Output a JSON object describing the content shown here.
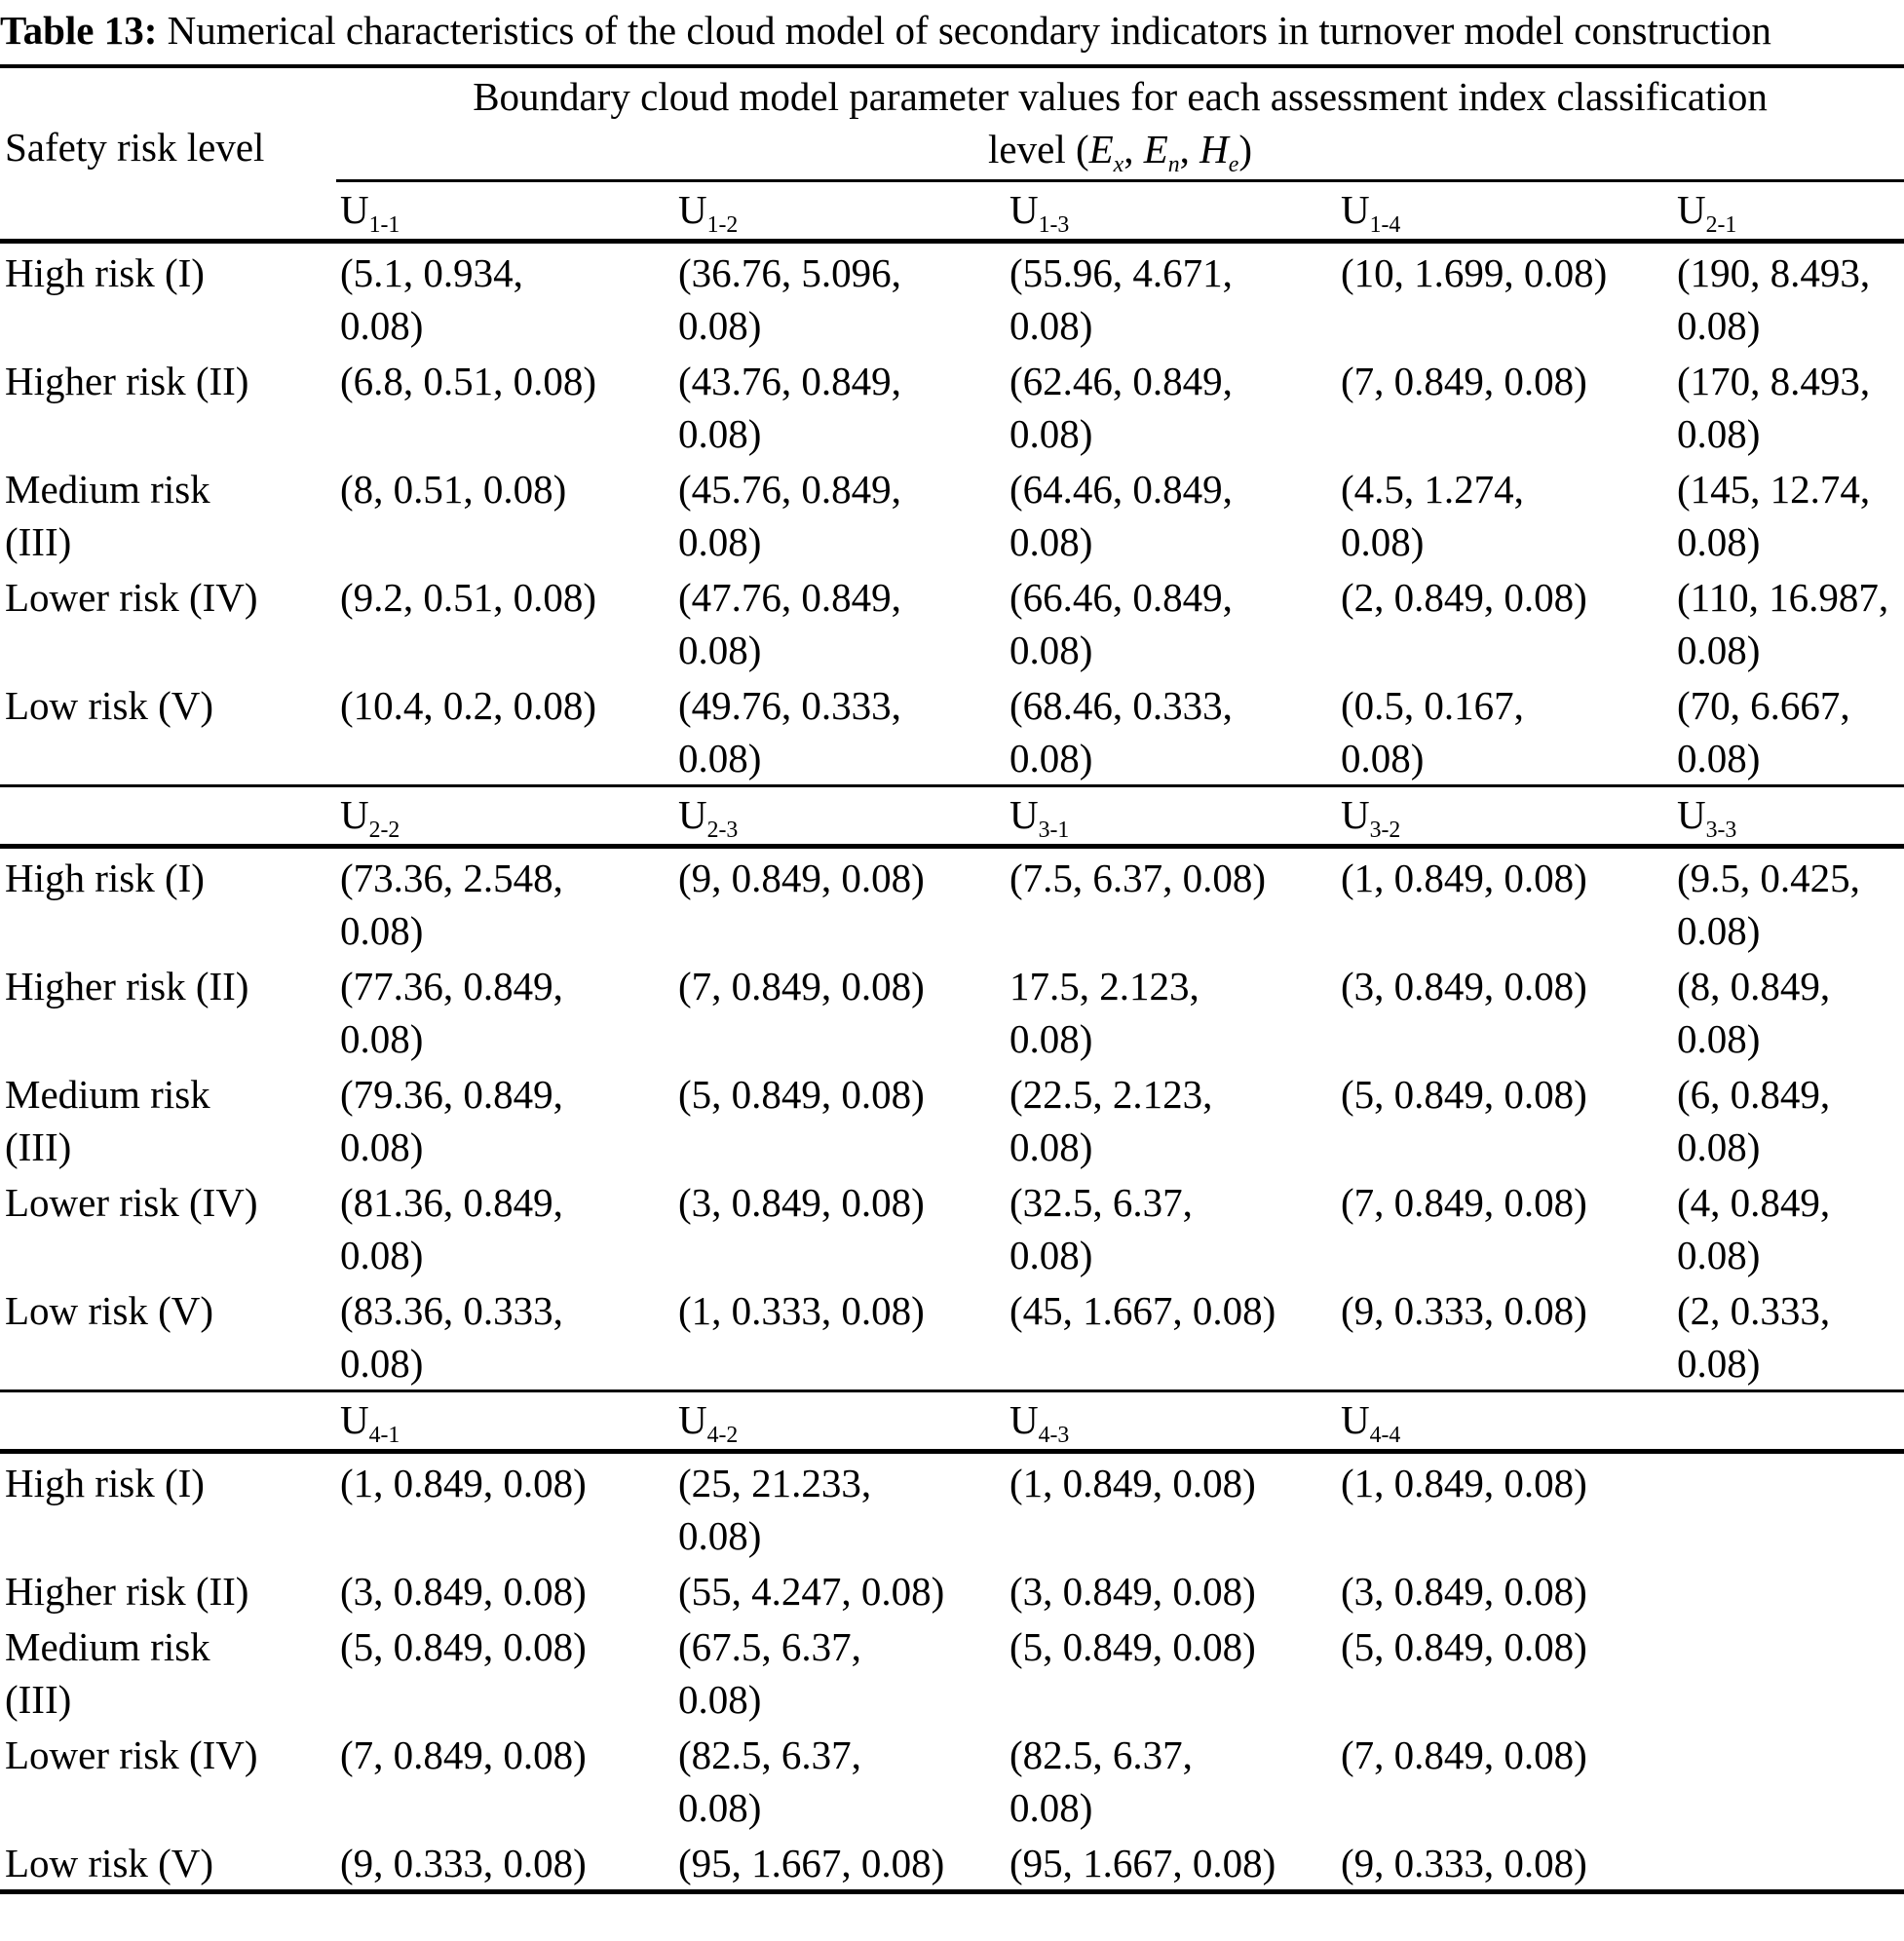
{
  "title": {
    "label": "Table 13:",
    "text": "Numerical characteristics of the cloud model of secondary indicators in turnover model construction"
  },
  "table": {
    "row_dimension_header": "Safety risk level",
    "group_header_line1": "Boundary cloud model parameter values for each assessment index classification",
    "group_header_line2": {
      "prefix": "level (",
      "sym1_base": "E",
      "sym1_sub": "x",
      "sep1": ", ",
      "sym2_base": "E",
      "sym2_sub": "n",
      "sep2": ", ",
      "sym3_base": "H",
      "sym3_sub": "e",
      "suffix": ")"
    },
    "sections": [
      {
        "columns": [
          {
            "base": "U",
            "sub": "1-1"
          },
          {
            "base": "U",
            "sub": "1-2"
          },
          {
            "base": "U",
            "sub": "1-3"
          },
          {
            "base": "U",
            "sub": "1-4"
          },
          {
            "base": "U",
            "sub": "2-1"
          }
        ],
        "rows": [
          {
            "label": [
              "High risk (I)"
            ],
            "cells": [
              [
                "(5.1, 0.934,",
                "0.08)"
              ],
              [
                "(36.76, 5.096,",
                "0.08)"
              ],
              [
                "(55.96, 4.671,",
                "0.08)"
              ],
              [
                "(10, 1.699, 0.08)"
              ],
              [
                "(190, 8.493,",
                "0.08)"
              ]
            ]
          },
          {
            "label": [
              "Higher risk (II)"
            ],
            "cells": [
              [
                "(6.8, 0.51, 0.08)"
              ],
              [
                "(43.76, 0.849,",
                "0.08)"
              ],
              [
                "(62.46, 0.849,",
                "0.08)"
              ],
              [
                "(7, 0.849, 0.08)"
              ],
              [
                "(170, 8.493,",
                "0.08)"
              ]
            ]
          },
          {
            "label": [
              "Medium risk",
              "(III)"
            ],
            "cells": [
              [
                "(8, 0.51, 0.08)"
              ],
              [
                "(45.76, 0.849,",
                "0.08)"
              ],
              [
                "(64.46, 0.849,",
                "0.08)"
              ],
              [
                "(4.5, 1.274,",
                "0.08)"
              ],
              [
                "(145, 12.74,",
                "0.08)"
              ]
            ]
          },
          {
            "label": [
              "Lower risk (IV)"
            ],
            "cells": [
              [
                "(9.2, 0.51, 0.08)"
              ],
              [
                "(47.76, 0.849,",
                "0.08)"
              ],
              [
                "(66.46, 0.849,",
                "0.08)"
              ],
              [
                "(2, 0.849, 0.08)"
              ],
              [
                "(110, 16.987,",
                "0.08)"
              ]
            ]
          },
          {
            "label": [
              "Low risk (V)"
            ],
            "cells": [
              [
                "(10.4, 0.2, 0.08)"
              ],
              [
                "(49.76, 0.333,",
                "0.08)"
              ],
              [
                "(68.46, 0.333,",
                "0.08)"
              ],
              [
                "(0.5, 0.167,",
                "0.08)"
              ],
              [
                "(70, 6.667,",
                "0.08)"
              ]
            ]
          }
        ]
      },
      {
        "columns": [
          {
            "base": "U",
            "sub": "2-2"
          },
          {
            "base": "U",
            "sub": "2-3"
          },
          {
            "base": "U",
            "sub": "3-1"
          },
          {
            "base": "U",
            "sub": "3-2"
          },
          {
            "base": "U",
            "sub": "3-3"
          }
        ],
        "rows": [
          {
            "label": [
              "High risk (I)"
            ],
            "cells": [
              [
                "(73.36, 2.548,",
                "0.08)"
              ],
              [
                "(9, 0.849, 0.08)"
              ],
              [
                "(7.5, 6.37, 0.08)"
              ],
              [
                "(1, 0.849, 0.08)"
              ],
              [
                "(9.5, 0.425,",
                "0.08)"
              ]
            ]
          },
          {
            "label": [
              "Higher risk (II)"
            ],
            "cells": [
              [
                "(77.36, 0.849,",
                "0.08)"
              ],
              [
                "(7, 0.849, 0.08)"
              ],
              [
                "17.5, 2.123,",
                "0.08)"
              ],
              [
                "(3, 0.849, 0.08)"
              ],
              [
                "(8, 0.849,",
                "0.08)"
              ]
            ]
          },
          {
            "label": [
              "Medium risk",
              "(III)"
            ],
            "cells": [
              [
                "(79.36, 0.849,",
                "0.08)"
              ],
              [
                "(5, 0.849, 0.08)"
              ],
              [
                "(22.5, 2.123,",
                "0.08)"
              ],
              [
                "(5, 0.849, 0.08)"
              ],
              [
                "(6, 0.849,",
                "0.08)"
              ]
            ]
          },
          {
            "label": [
              "Lower risk (IV)"
            ],
            "cells": [
              [
                "(81.36, 0.849,",
                "0.08)"
              ],
              [
                "(3, 0.849, 0.08)"
              ],
              [
                "(32.5, 6.37,",
                "0.08)"
              ],
              [
                "(7, 0.849, 0.08)"
              ],
              [
                "(4, 0.849,",
                "0.08)"
              ]
            ]
          },
          {
            "label": [
              "Low risk (V)"
            ],
            "cells": [
              [
                "(83.36, 0.333,",
                "0.08)"
              ],
              [
                "(1, 0.333, 0.08)"
              ],
              [
                "(45, 1.667, 0.08)"
              ],
              [
                "(9, 0.333, 0.08)"
              ],
              [
                "(2, 0.333,",
                "0.08)"
              ]
            ]
          }
        ]
      },
      {
        "columns": [
          {
            "base": "U",
            "sub": "4-1"
          },
          {
            "base": "U",
            "sub": "4-2"
          },
          {
            "base": "U",
            "sub": "4-3"
          },
          {
            "base": "U",
            "sub": "4-4"
          },
          null
        ],
        "rows": [
          {
            "label": [
              "High risk (I)"
            ],
            "cells": [
              [
                "(1, 0.849, 0.08)"
              ],
              [
                "(25, 21.233,",
                "0.08)"
              ],
              [
                "(1, 0.849, 0.08)"
              ],
              [
                "(1, 0.849, 0.08)"
              ],
              []
            ]
          },
          {
            "label": [
              "Higher risk (II)"
            ],
            "cells": [
              [
                "(3, 0.849, 0.08)"
              ],
              [
                "(55, 4.247, 0.08)"
              ],
              [
                "(3, 0.849, 0.08)"
              ],
              [
                "(3, 0.849, 0.08)"
              ],
              []
            ]
          },
          {
            "label": [
              "Medium risk",
              "(III)"
            ],
            "cells": [
              [
                "(5, 0.849, 0.08)"
              ],
              [
                "(67.5, 6.37,",
                "0.08)"
              ],
              [
                "(5, 0.849, 0.08)"
              ],
              [
                "(5, 0.849, 0.08)"
              ],
              []
            ]
          },
          {
            "label": [
              "Lower risk (IV)"
            ],
            "cells": [
              [
                "(7, 0.849, 0.08)"
              ],
              [
                "(82.5, 6.37,",
                "0.08)"
              ],
              [
                "(82.5, 6.37,",
                "0.08)"
              ],
              [
                "(7, 0.849, 0.08)"
              ],
              []
            ]
          },
          {
            "label": [
              "Low risk (V)"
            ],
            "cells": [
              [
                "(9, 0.333, 0.08)"
              ],
              [
                "(95, 1.667, 0.08)"
              ],
              [
                "(95, 1.667, 0.08)"
              ],
              [
                "(9, 0.333, 0.08)"
              ],
              []
            ]
          }
        ]
      }
    ]
  }
}
